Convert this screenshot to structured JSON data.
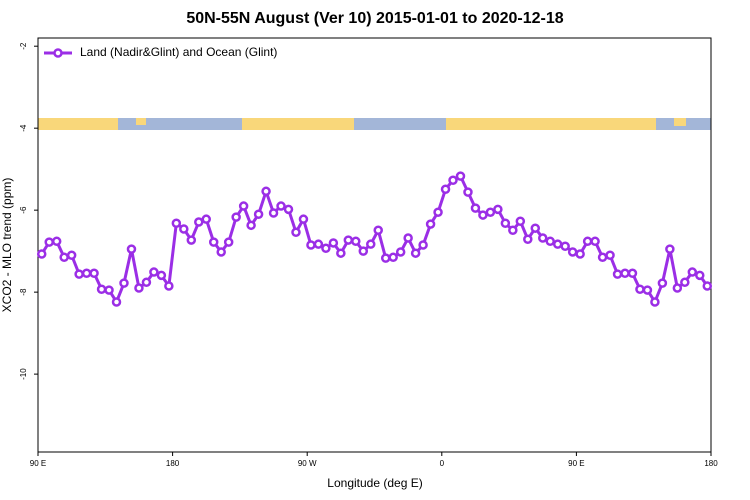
{
  "chart_data": {
    "type": "line",
    "title": "50N-55N August (Ver 10)   2015-01-01 to 2020-12-18",
    "x_label": "Longitude (deg E)",
    "y_label": "XCO2 - MLO trend (ppm)",
    "xlim": [
      90,
      540
    ],
    "ylim": [
      -11.9,
      -1.8
    ],
    "xticks": [
      {
        "value": 90,
        "label": "90 E"
      },
      180,
      {
        "value": 270,
        "label": "90 W"
      },
      {
        "value": 360,
        "label": "0"
      },
      {
        "value": 450,
        "label": "90 E"
      },
      {
        "value": 540,
        "label": "180"
      }
    ],
    "yticks": [
      -2,
      -4,
      -6,
      -8,
      -10
    ],
    "legend": "top-left",
    "x": [
      92.5,
      97.5,
      102.5,
      107.5,
      112.5,
      117.5,
      122.5,
      127.5,
      132.5,
      137.5,
      142.5,
      147.5,
      152.5,
      157.5,
      162.5,
      167.5,
      172.5,
      177.5,
      182.5,
      187.5,
      192.5,
      197.5,
      202.5,
      207.5,
      212.5,
      217.5,
      222.5,
      227.5,
      232.5,
      237.5,
      242.5,
      247.5,
      252.5,
      257.5,
      262.5,
      267.5,
      272.5,
      277.5,
      282.5,
      287.5,
      292.5,
      297.5,
      302.5,
      307.5,
      312.5,
      317.5,
      322.5,
      327.5,
      332.5,
      337.5,
      342.5,
      347.5,
      352.5,
      357.5,
      362.5,
      367.5,
      372.5,
      377.5,
      382.5,
      387.5,
      392.5,
      397.5,
      402.5,
      407.5,
      412.5,
      417.5,
      422.5,
      427.5,
      432.5,
      437.5,
      442.5,
      447.5,
      452.5,
      457.5,
      462.5,
      467.5,
      472.5,
      477.5,
      482.5,
      487.5,
      492.5,
      497.5,
      502.5,
      507.5,
      512.5,
      517.5,
      522.5,
      527.5,
      532.5,
      537.5
    ],
    "series": [
      {
        "name": "Land (Nadir&Glint) and Ocean (Glint)",
        "color": "#9b2ee6",
        "values": [
          -7.07,
          -6.78,
          -6.76,
          -7.15,
          -7.1,
          -7.56,
          -7.54,
          -7.54,
          -7.93,
          -7.95,
          -8.24,
          -7.78,
          -6.95,
          -7.9,
          -7.76,
          -7.51,
          -7.59,
          -7.85,
          -6.32,
          -6.46,
          -6.73,
          -6.29,
          -6.22,
          -6.78,
          -7.02,
          -6.78,
          -6.17,
          -5.9,
          -6.37,
          -6.1,
          -5.54,
          -6.07,
          -5.9,
          -5.98,
          -6.54,
          -6.22,
          -6.85,
          -6.83,
          -6.93,
          -6.8,
          -7.05,
          -6.73,
          -6.76,
          -7.0,
          -6.83,
          -6.49,
          -7.17,
          -7.15,
          -7.02,
          -6.68,
          -7.05,
          -6.85,
          -6.34,
          -6.05,
          -5.49,
          -5.27,
          -5.17,
          -5.56,
          -5.95,
          -6.12,
          -6.05,
          -5.98,
          -6.32,
          -6.49,
          -6.27,
          -6.71,
          -6.44,
          -6.68,
          -6.76,
          -6.83,
          -6.88,
          -7.02,
          -7.07,
          -6.76,
          -6.76,
          -7.15,
          -7.1,
          -7.56,
          -7.54,
          -7.54,
          -7.93,
          -7.95,
          -8.24,
          -7.78,
          -6.95,
          -7.9,
          -7.76,
          -7.51,
          -7.59,
          -7.85
        ]
      }
    ]
  }
}
